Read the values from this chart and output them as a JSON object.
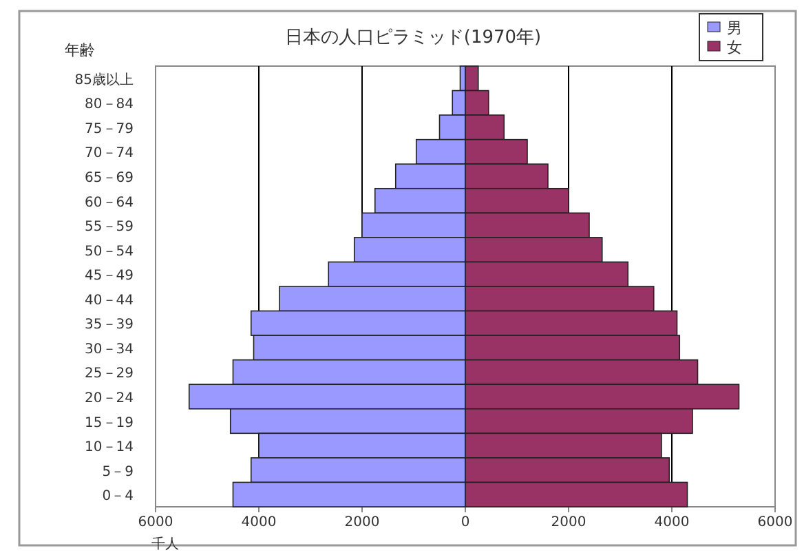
{
  "chart_data": {
    "type": "bar",
    "orientation": "horizontal",
    "stacked": true,
    "title": "日本の人口ピラミッド(1970年)",
    "xlabel": "千人",
    "ylabel": "年齢",
    "categories": [
      "85歳以上",
      "80－84",
      "75－79",
      "70－74",
      "65－69",
      "60－64",
      "55－59",
      "50－54",
      "45－49",
      "40－44",
      "35－39",
      "30－34",
      "25－29",
      "20－24",
      "15－19",
      "10－14",
      "5－9",
      "0－4"
    ],
    "series": [
      {
        "name": "男",
        "color": "#9999ff",
        "values": [
          -100,
          -250,
          -500,
          -950,
          -1350,
          -1750,
          -2000,
          -2150,
          -2650,
          -3600,
          -4150,
          -4100,
          -4500,
          -5350,
          -4550,
          -4000,
          -4150,
          -4500
        ]
      },
      {
        "name": "女",
        "color": "#993366",
        "values": [
          250,
          450,
          750,
          1200,
          1600,
          2000,
          2400,
          2650,
          3150,
          3650,
          4100,
          4150,
          4500,
          5300,
          4400,
          3800,
          3950,
          4300
        ]
      }
    ],
    "xlim": [
      -6000,
      6000
    ],
    "xticks": [
      {
        "value": -6000,
        "label": "6000"
      },
      {
        "value": -4000,
        "label": "4000"
      },
      {
        "value": -2000,
        "label": "2000"
      },
      0,
      2000,
      4000,
      6000
    ],
    "grid": "x",
    "legend": "top right"
  }
}
